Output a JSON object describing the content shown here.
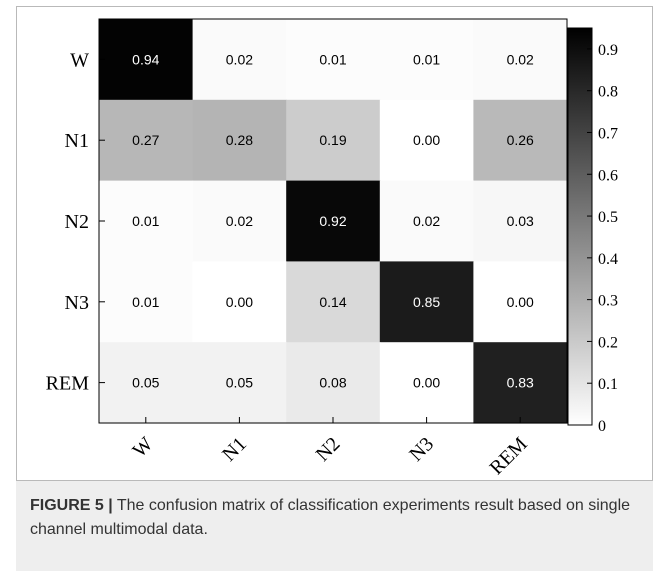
{
  "chart_data": {
    "type": "heatmap",
    "rows": [
      "W",
      "N1",
      "N2",
      "N3",
      "REM"
    ],
    "columns": [
      "W",
      "N1",
      "N2",
      "N3",
      "REM"
    ],
    "values": [
      [
        0.94,
        0.02,
        0.01,
        0.01,
        0.02
      ],
      [
        0.27,
        0.28,
        0.19,
        0.0,
        0.26
      ],
      [
        0.01,
        0.02,
        0.92,
        0.02,
        0.03
      ],
      [
        0.01,
        0.0,
        0.14,
        0.85,
        0.0
      ],
      [
        0.05,
        0.05,
        0.08,
        0.0,
        0.83
      ]
    ],
    "value_labels": [
      [
        "0.94",
        "0.02",
        "0.01",
        "0.01",
        "0.02"
      ],
      [
        "0.27",
        "0.28",
        "0.19",
        "0.00",
        "0.26"
      ],
      [
        "0.01",
        "0.02",
        "0.92",
        "0.02",
        "0.03"
      ],
      [
        "0.01",
        "0.00",
        "0.14",
        "0.85",
        "0.00"
      ],
      [
        "0.05",
        "0.05",
        "0.08",
        "0.00",
        "0.83"
      ]
    ],
    "colorbar": {
      "min": 0,
      "max": 0.95,
      "ticks": [
        "0",
        "0.1",
        "0.2",
        "0.3",
        "0.4",
        "0.5",
        "0.6",
        "0.7",
        "0.8",
        "0.9"
      ],
      "colormap": "white-to-black"
    },
    "title": "",
    "xlabel": "",
    "ylabel": ""
  },
  "caption": {
    "label": "FIGURE 5 |",
    "text": " The confusion matrix of classification experiments result based on single channel multimodal data."
  },
  "colors": {
    "frame": "#b9b9b9",
    "caption_background": "#eeeeee",
    "caption_text": "#333333"
  }
}
